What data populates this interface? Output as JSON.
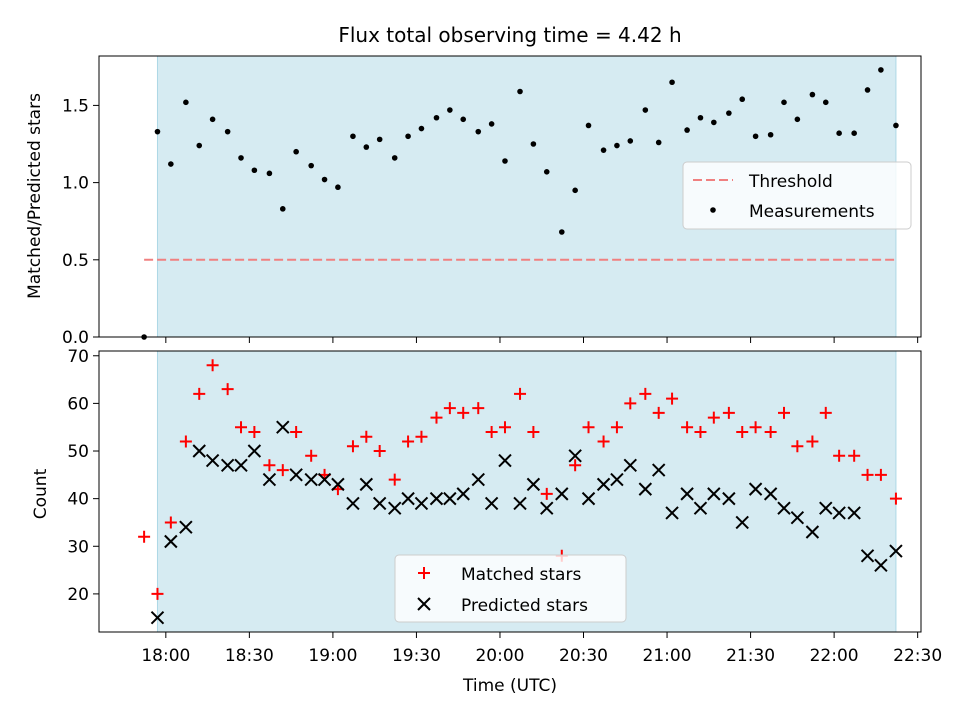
{
  "colors": {
    "shade": "#add8e6",
    "threshold": "#f08080",
    "matched": "#ff0000",
    "predicted": "#000000",
    "measurement": "#000000"
  },
  "chart_data": [
    {
      "type": "scatter",
      "title": "Flux total observing time = 4.42 h",
      "xlabel": "",
      "ylabel": "Matched/Predicted stars",
      "xlim": [
        17.6,
        22.52
      ],
      "ylim": [
        0.0,
        1.82
      ],
      "yticks": [
        0.0,
        0.5,
        1.0,
        1.5
      ],
      "ytick_labels": [
        "0.0",
        "0.5",
        "1.0",
        "1.5"
      ],
      "shaded_span": [
        17.95,
        22.37
      ],
      "threshold": {
        "value": 0.5,
        "x": [
          17.87,
          22.37
        ]
      },
      "legend": {
        "position": "center-right",
        "entries": [
          "Threshold",
          "Measurements"
        ]
      },
      "series": [
        {
          "name": "Measurements",
          "x": [
            17.87,
            17.95,
            18.03,
            18.12,
            18.2,
            18.28,
            18.37,
            18.45,
            18.53,
            18.62,
            18.7,
            18.78,
            18.87,
            18.95,
            19.03,
            19.12,
            19.2,
            19.28,
            19.37,
            19.45,
            19.53,
            19.62,
            19.7,
            19.78,
            19.87,
            19.95,
            20.03,
            20.12,
            20.2,
            20.28,
            20.37,
            20.45,
            20.53,
            20.62,
            20.7,
            20.78,
            20.87,
            20.95,
            21.03,
            21.12,
            21.2,
            21.28,
            21.37,
            21.45,
            21.53,
            21.62,
            21.7,
            21.78,
            21.87,
            21.95,
            22.03,
            22.12,
            22.2,
            22.28,
            22.37
          ],
          "y": [
            0.0,
            1.33,
            1.12,
            1.52,
            1.24,
            1.41,
            1.33,
            1.16,
            1.08,
            1.06,
            0.83,
            1.2,
            1.11,
            1.02,
            0.97,
            1.3,
            1.23,
            1.28,
            1.16,
            1.3,
            1.35,
            1.42,
            1.47,
            1.41,
            1.33,
            1.38,
            1.14,
            1.59,
            1.25,
            1.07,
            0.68,
            0.95,
            1.37,
            1.21,
            1.24,
            1.27,
            1.47,
            1.26,
            1.65,
            1.34,
            1.42,
            1.39,
            1.45,
            1.54,
            1.3,
            1.31,
            1.52,
            1.41,
            1.57,
            1.52,
            1.32,
            1.32,
            1.6,
            1.73,
            1.37
          ]
        }
      ]
    },
    {
      "type": "scatter",
      "title": "",
      "xlabel": "Time (UTC)",
      "ylabel": "Count",
      "xlim": [
        17.6,
        22.52
      ],
      "ylim": [
        12,
        71
      ],
      "yticks": [
        20,
        30,
        40,
        50,
        60,
        70
      ],
      "ytick_labels": [
        "20",
        "30",
        "40",
        "50",
        "60",
        "70"
      ],
      "xticks": [
        18.0,
        18.5,
        19.0,
        19.5,
        20.0,
        20.5,
        21.0,
        21.5,
        22.0,
        22.5
      ],
      "xtick_labels": [
        "18:00",
        "18:30",
        "19:00",
        "19:30",
        "20:00",
        "20:30",
        "21:00",
        "21:30",
        "22:00",
        "22:30"
      ],
      "shaded_span": [
        17.95,
        22.37
      ],
      "legend": {
        "position": "lower-center",
        "entries": [
          "Matched stars",
          "Predicted stars"
        ]
      },
      "series": [
        {
          "name": "Matched stars",
          "marker": "+",
          "x": [
            17.87,
            17.95,
            18.03,
            18.12,
            18.2,
            18.28,
            18.37,
            18.45,
            18.53,
            18.62,
            18.7,
            18.78,
            18.87,
            18.95,
            19.03,
            19.12,
            19.2,
            19.28,
            19.37,
            19.45,
            19.53,
            19.62,
            19.7,
            19.78,
            19.87,
            19.95,
            20.03,
            20.12,
            20.2,
            20.28,
            20.37,
            20.45,
            20.53,
            20.62,
            20.7,
            20.78,
            20.87,
            20.95,
            21.03,
            21.12,
            21.2,
            21.28,
            21.37,
            21.45,
            21.53,
            21.62,
            21.7,
            21.78,
            21.87,
            21.95,
            22.03,
            22.12,
            22.2,
            22.28,
            22.37
          ],
          "y": [
            32,
            20,
            35,
            52,
            62,
            68,
            63,
            55,
            54,
            47,
            46,
            54,
            49,
            45,
            42,
            51,
            53,
            50,
            44,
            52,
            53,
            57,
            59,
            58,
            59,
            54,
            55,
            62,
            54,
            41,
            28,
            47,
            55,
            52,
            55,
            60,
            62,
            58,
            61,
            55,
            54,
            57,
            58,
            54,
            55,
            54,
            58,
            51,
            52,
            58,
            49,
            49,
            45,
            45,
            40
          ]
        },
        {
          "name": "Predicted stars",
          "marker": "x",
          "x": [
            17.95,
            18.03,
            18.12,
            18.2,
            18.28,
            18.37,
            18.45,
            18.53,
            18.62,
            18.7,
            18.78,
            18.87,
            18.95,
            19.03,
            19.12,
            19.2,
            19.28,
            19.37,
            19.45,
            19.53,
            19.62,
            19.7,
            19.78,
            19.87,
            19.95,
            20.03,
            20.12,
            20.2,
            20.28,
            20.37,
            20.45,
            20.53,
            20.62,
            20.7,
            20.78,
            20.87,
            20.95,
            21.03,
            21.12,
            21.2,
            21.28,
            21.37,
            21.45,
            21.53,
            21.62,
            21.7,
            21.78,
            21.87,
            21.95,
            22.03,
            22.12,
            22.2,
            22.28,
            22.37
          ],
          "y": [
            15,
            31,
            34,
            50,
            48,
            47,
            47,
            50,
            44,
            55,
            45,
            44,
            44,
            43,
            39,
            43,
            39,
            38,
            40,
            39,
            40,
            40,
            41,
            44,
            39,
            48,
            39,
            43,
            38,
            41,
            49,
            40,
            43,
            44,
            47,
            42,
            46,
            37,
            41,
            38,
            41,
            40,
            35,
            42,
            41,
            38,
            36,
            33,
            38,
            37,
            37,
            28,
            26,
            29
          ]
        }
      ]
    }
  ]
}
